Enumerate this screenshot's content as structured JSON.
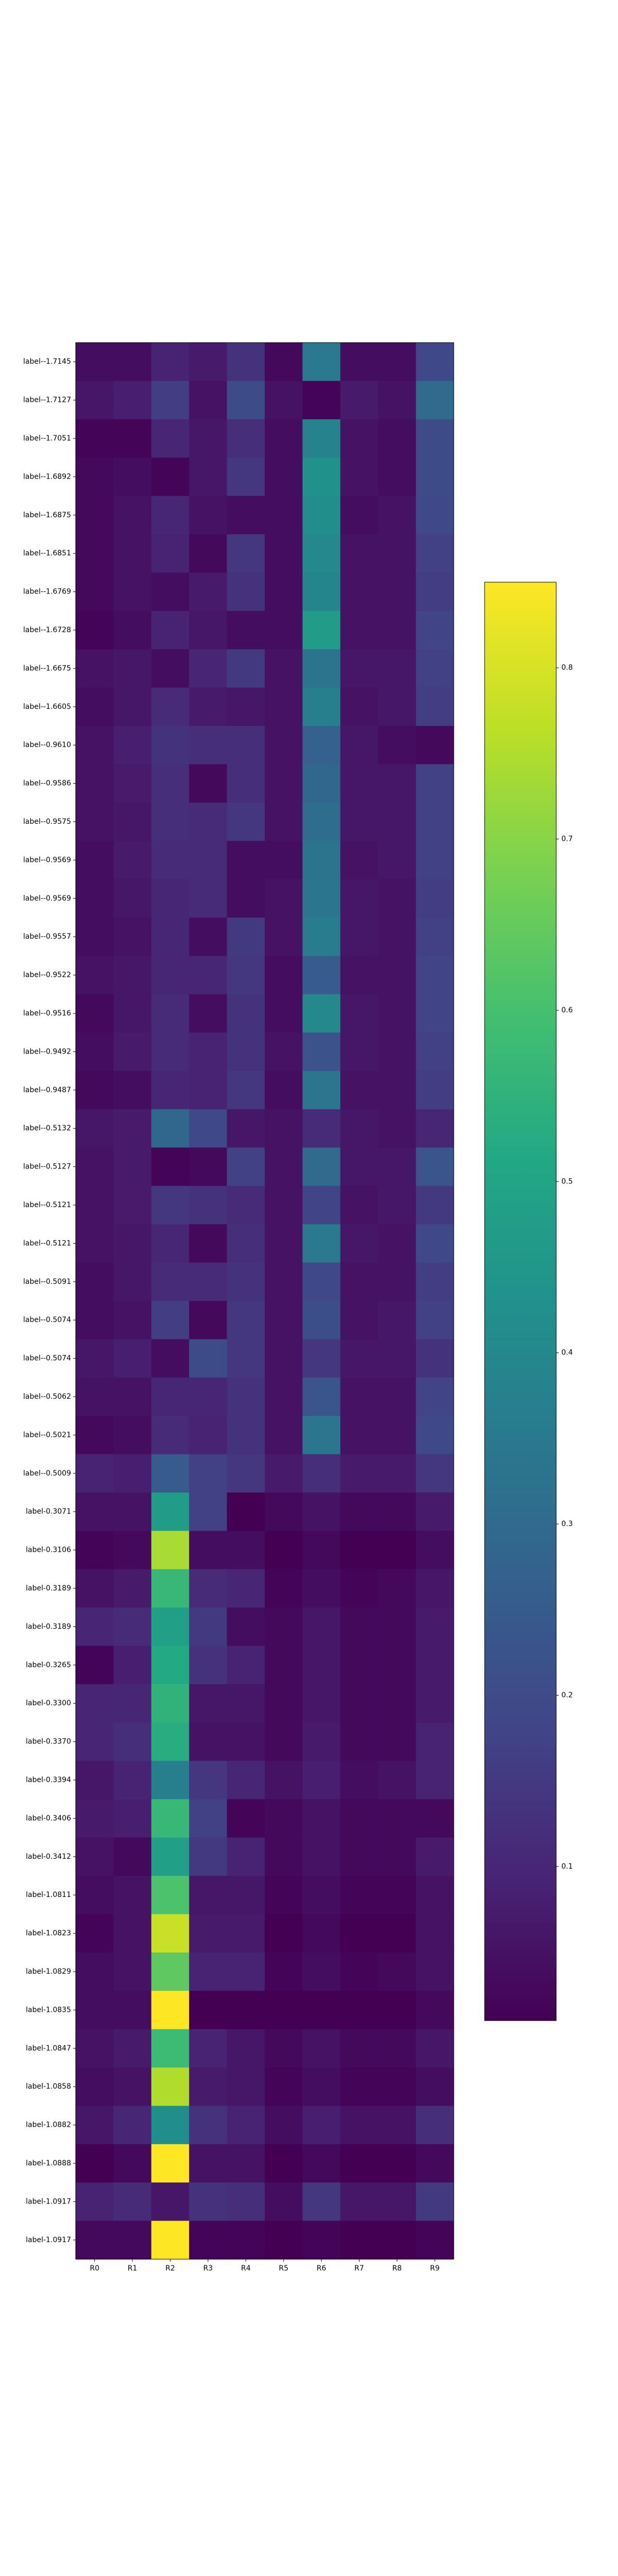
{
  "chart_data": {
    "type": "heatmap",
    "title": "",
    "xlabel": "",
    "ylabel": "",
    "colormap": "viridis",
    "columns": [
      "R0",
      "R1",
      "R2",
      "R3",
      "R4",
      "R5",
      "R6",
      "R7",
      "R8",
      "R9"
    ],
    "rows": [
      "label--1.7145",
      "label--1.7127",
      "label--1.7051",
      "label--1.6892",
      "label--1.6875",
      "label--1.6851",
      "label--1.6769",
      "label--1.6728",
      "label--1.6675",
      "label--1.6605",
      "label--0.9610",
      "label--0.9586",
      "label--0.9575",
      "label--0.9569",
      "label--0.9569",
      "label--0.9557",
      "label--0.9522",
      "label--0.9516",
      "label--0.9492",
      "label--0.9487",
      "label--0.5132",
      "label--0.5127",
      "label--0.5121",
      "label--0.5121",
      "label--0.5091",
      "label--0.5074",
      "label--0.5074",
      "label--0.5062",
      "label--0.5021",
      "label--0.5009",
      "label-0.3071",
      "label-0.3106",
      "label-0.3189",
      "label-0.3189",
      "label-0.3265",
      "label-0.3300",
      "label-0.3370",
      "label-0.3394",
      "label-0.3406",
      "label-0.3412",
      "label-1.0811",
      "label-1.0823",
      "label-1.0829",
      "label-1.0835",
      "label-1.0847",
      "label-1.0858",
      "label-1.0882",
      "label-1.0888",
      "label-1.0917",
      "label-1.0917"
    ],
    "values": [
      [
        0.04,
        0.04,
        0.09,
        0.07,
        0.13,
        0.03,
        0.35,
        0.04,
        0.04,
        0.19
      ],
      [
        0.06,
        0.08,
        0.16,
        0.05,
        0.2,
        0.05,
        0.02,
        0.07,
        0.05,
        0.3
      ],
      [
        0.02,
        0.02,
        0.1,
        0.06,
        0.12,
        0.04,
        0.38,
        0.05,
        0.04,
        0.2
      ],
      [
        0.03,
        0.04,
        0.02,
        0.06,
        0.14,
        0.04,
        0.43,
        0.05,
        0.04,
        0.2
      ],
      [
        0.03,
        0.05,
        0.1,
        0.05,
        0.04,
        0.04,
        0.42,
        0.04,
        0.05,
        0.19
      ],
      [
        0.03,
        0.05,
        0.09,
        0.03,
        0.14,
        0.04,
        0.4,
        0.05,
        0.05,
        0.17
      ],
      [
        0.03,
        0.05,
        0.04,
        0.07,
        0.13,
        0.04,
        0.39,
        0.05,
        0.05,
        0.16
      ],
      [
        0.02,
        0.04,
        0.09,
        0.06,
        0.04,
        0.04,
        0.47,
        0.05,
        0.05,
        0.18
      ],
      [
        0.05,
        0.06,
        0.04,
        0.1,
        0.15,
        0.05,
        0.33,
        0.06,
        0.06,
        0.17
      ],
      [
        0.04,
        0.06,
        0.11,
        0.07,
        0.06,
        0.05,
        0.37,
        0.05,
        0.06,
        0.16
      ],
      [
        0.05,
        0.08,
        0.13,
        0.12,
        0.12,
        0.05,
        0.27,
        0.06,
        0.04,
        0.03
      ],
      [
        0.05,
        0.07,
        0.12,
        0.03,
        0.12,
        0.05,
        0.29,
        0.06,
        0.06,
        0.17
      ],
      [
        0.05,
        0.06,
        0.12,
        0.11,
        0.14,
        0.05,
        0.31,
        0.06,
        0.06,
        0.17
      ],
      [
        0.04,
        0.07,
        0.11,
        0.11,
        0.04,
        0.04,
        0.33,
        0.05,
        0.06,
        0.17
      ],
      [
        0.04,
        0.06,
        0.1,
        0.11,
        0.04,
        0.05,
        0.34,
        0.06,
        0.05,
        0.16
      ],
      [
        0.04,
        0.05,
        0.1,
        0.04,
        0.15,
        0.05,
        0.36,
        0.06,
        0.05,
        0.17
      ],
      [
        0.05,
        0.06,
        0.1,
        0.1,
        0.14,
        0.04,
        0.25,
        0.05,
        0.05,
        0.18
      ],
      [
        0.03,
        0.06,
        0.11,
        0.04,
        0.13,
        0.04,
        0.4,
        0.06,
        0.05,
        0.18
      ],
      [
        0.04,
        0.07,
        0.11,
        0.09,
        0.13,
        0.05,
        0.22,
        0.06,
        0.05,
        0.17
      ],
      [
        0.03,
        0.04,
        0.1,
        0.09,
        0.14,
        0.04,
        0.34,
        0.05,
        0.05,
        0.16
      ],
      [
        0.06,
        0.07,
        0.29,
        0.19,
        0.06,
        0.05,
        0.11,
        0.06,
        0.05,
        0.1
      ],
      [
        0.05,
        0.07,
        0.02,
        0.03,
        0.17,
        0.05,
        0.3,
        0.06,
        0.06,
        0.23
      ],
      [
        0.05,
        0.07,
        0.14,
        0.13,
        0.11,
        0.05,
        0.18,
        0.05,
        0.06,
        0.15
      ],
      [
        0.05,
        0.06,
        0.1,
        0.03,
        0.12,
        0.05,
        0.35,
        0.06,
        0.05,
        0.19
      ],
      [
        0.04,
        0.06,
        0.11,
        0.11,
        0.13,
        0.05,
        0.19,
        0.05,
        0.05,
        0.16
      ],
      [
        0.04,
        0.05,
        0.16,
        0.03,
        0.14,
        0.05,
        0.21,
        0.05,
        0.06,
        0.17
      ],
      [
        0.06,
        0.08,
        0.04,
        0.2,
        0.14,
        0.05,
        0.14,
        0.06,
        0.06,
        0.13
      ],
      [
        0.05,
        0.05,
        0.1,
        0.1,
        0.13,
        0.05,
        0.23,
        0.05,
        0.05,
        0.18
      ],
      [
        0.03,
        0.04,
        0.11,
        0.09,
        0.13,
        0.05,
        0.34,
        0.05,
        0.05,
        0.19
      ],
      [
        0.09,
        0.08,
        0.25,
        0.17,
        0.14,
        0.07,
        0.12,
        0.07,
        0.07,
        0.14
      ],
      [
        0.05,
        0.05,
        0.47,
        0.17,
        0.01,
        0.03,
        0.05,
        0.03,
        0.03,
        0.07
      ],
      [
        0.02,
        0.03,
        0.74,
        0.04,
        0.04,
        0.01,
        0.03,
        0.01,
        0.01,
        0.04
      ],
      [
        0.05,
        0.07,
        0.57,
        0.11,
        0.1,
        0.02,
        0.04,
        0.02,
        0.03,
        0.06
      ],
      [
        0.1,
        0.11,
        0.48,
        0.15,
        0.04,
        0.03,
        0.06,
        0.03,
        0.03,
        0.07
      ],
      [
        0.02,
        0.08,
        0.52,
        0.13,
        0.09,
        0.03,
        0.06,
        0.03,
        0.03,
        0.07
      ],
      [
        0.1,
        0.1,
        0.55,
        0.06,
        0.06,
        0.03,
        0.06,
        0.03,
        0.03,
        0.07
      ],
      [
        0.1,
        0.12,
        0.53,
        0.05,
        0.05,
        0.03,
        0.07,
        0.03,
        0.03,
        0.09
      ],
      [
        0.06,
        0.09,
        0.37,
        0.14,
        0.1,
        0.05,
        0.08,
        0.04,
        0.05,
        0.09
      ],
      [
        0.07,
        0.08,
        0.57,
        0.17,
        0.02,
        0.03,
        0.05,
        0.03,
        0.03,
        0.03
      ],
      [
        0.05,
        0.03,
        0.48,
        0.15,
        0.09,
        0.03,
        0.05,
        0.03,
        0.03,
        0.07
      ],
      [
        0.04,
        0.05,
        0.61,
        0.06,
        0.06,
        0.02,
        0.04,
        0.02,
        0.02,
        0.05
      ],
      [
        0.02,
        0.05,
        0.78,
        0.07,
        0.07,
        0.01,
        0.03,
        0.01,
        0.01,
        0.05
      ],
      [
        0.04,
        0.05,
        0.64,
        0.09,
        0.09,
        0.02,
        0.04,
        0.02,
        0.03,
        0.05
      ],
      [
        0.04,
        0.04,
        0.88,
        0.01,
        0.01,
        0.01,
        0.01,
        0.01,
        0.01,
        0.03
      ],
      [
        0.05,
        0.07,
        0.58,
        0.09,
        0.06,
        0.03,
        0.05,
        0.03,
        0.03,
        0.06
      ],
      [
        0.04,
        0.05,
        0.75,
        0.07,
        0.06,
        0.02,
        0.04,
        0.02,
        0.02,
        0.04
      ],
      [
        0.06,
        0.1,
        0.42,
        0.13,
        0.09,
        0.04,
        0.08,
        0.05,
        0.05,
        0.12
      ],
      [
        0.01,
        0.03,
        0.88,
        0.05,
        0.05,
        0.01,
        0.03,
        0.01,
        0.01,
        0.03
      ],
      [
        0.09,
        0.11,
        0.06,
        0.13,
        0.12,
        0.04,
        0.14,
        0.06,
        0.06,
        0.15
      ],
      [
        0.03,
        0.03,
        0.9,
        0.02,
        0.02,
        0.01,
        0.02,
        0.01,
        0.01,
        0.02
      ]
    ],
    "colorbar": {
      "min": 0.01,
      "max": 0.85,
      "ticks": [
        0.1,
        0.2,
        0.3,
        0.4,
        0.5,
        0.6,
        0.7,
        0.8
      ],
      "tick_labels": [
        "0.1",
        "0.2",
        "0.3",
        "0.4",
        "0.5",
        "0.6",
        "0.7",
        "0.8"
      ]
    },
    "grid": false,
    "legend": "colorbar-right"
  }
}
